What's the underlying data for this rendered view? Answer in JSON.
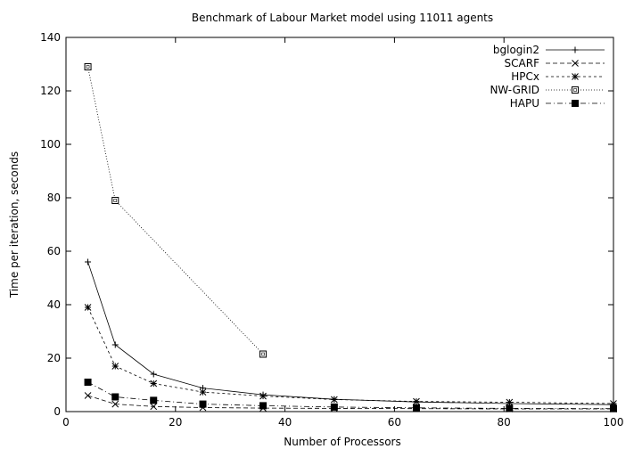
{
  "chart_data": {
    "type": "line",
    "title": "Benchmark of Labour Market model using 11011 agents",
    "xlabel": "Number of Processors",
    "ylabel": "Time per iteration, seconds",
    "xlim": [
      0,
      100
    ],
    "ylim": [
      0,
      140
    ],
    "xticks": [
      0,
      20,
      40,
      60,
      80,
      100
    ],
    "yticks": [
      0,
      20,
      40,
      60,
      80,
      100,
      120,
      140
    ],
    "grid": false,
    "legend_position": "top-right",
    "series": [
      {
        "name": "bglogin2",
        "marker": "plus",
        "dash": "solid",
        "x": [
          4,
          9,
          16,
          25,
          36,
          49,
          64,
          81,
          100
        ],
        "y": [
          56,
          25,
          14,
          8.8,
          6.3,
          4.6,
          3.6,
          3.0,
          2.6
        ]
      },
      {
        "name": "SCARF",
        "marker": "cross",
        "dash": "dashed",
        "x": [
          4,
          9,
          16,
          25,
          36,
          49,
          64,
          81,
          100
        ],
        "y": [
          6,
          2.8,
          1.9,
          1.5,
          1.3,
          1.2,
          1.1,
          1.0,
          1.0
        ]
      },
      {
        "name": "HPCx",
        "marker": "asterisk",
        "dash": "short-dash",
        "x": [
          4,
          9,
          16,
          25,
          36,
          49,
          64,
          81,
          100
        ],
        "y": [
          39,
          17,
          10.5,
          7.3,
          5.8,
          4.5,
          3.8,
          3.5,
          3.0
        ]
      },
      {
        "name": "NW-GRID",
        "marker": "open-square",
        "dash": "dotted",
        "x": [
          4,
          9,
          36
        ],
        "y": [
          129,
          79,
          21.5
        ]
      },
      {
        "name": "HAPU",
        "marker": "filled-square",
        "dash": "dash-dot",
        "x": [
          4,
          9,
          16,
          25,
          36,
          49,
          64,
          81,
          100
        ],
        "y": [
          11,
          5.5,
          4.2,
          2.8,
          2.2,
          1.7,
          1.4,
          1.2,
          1.1
        ]
      }
    ]
  }
}
